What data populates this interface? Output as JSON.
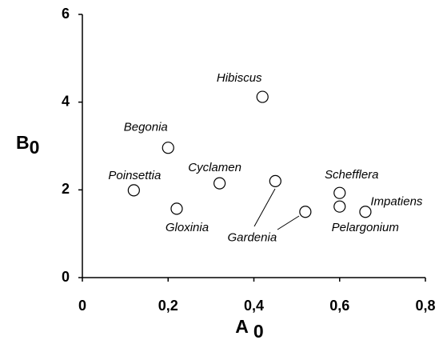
{
  "chart_data": {
    "type": "scatter",
    "xlabel": {
      "main": "A",
      "sub": "0"
    },
    "ylabel": {
      "main": "B",
      "sub": "0"
    },
    "labels": [
      "Poinsettia",
      "Begonia",
      "Gloxinia",
      "Cyclamen",
      "Hibiscus",
      "Gardenia",
      null,
      "Schefflera",
      "Pelargonium",
      "Impatiens"
    ],
    "x": [
      0.12,
      0.2,
      0.22,
      0.32,
      0.42,
      0.45,
      0.52,
      0.6,
      0.6,
      0.66
    ],
    "y": [
      1.99,
      2.96,
      1.57,
      2.15,
      4.12,
      2.2,
      1.5,
      1.93,
      1.62,
      1.5
    ],
    "xlim": [
      0,
      0.8
    ],
    "xticks": [
      0,
      {
        "value": 0.2,
        "label": "0,2"
      },
      {
        "value": 0.4,
        "label": "0,4"
      },
      {
        "value": 0.6,
        "label": "0,6"
      },
      {
        "value": 0.8,
        "label": "0,8"
      }
    ],
    "ylim": [
      0,
      6
    ],
    "yticks": [
      0,
      2,
      4,
      6
    ],
    "color": "#000000"
  }
}
